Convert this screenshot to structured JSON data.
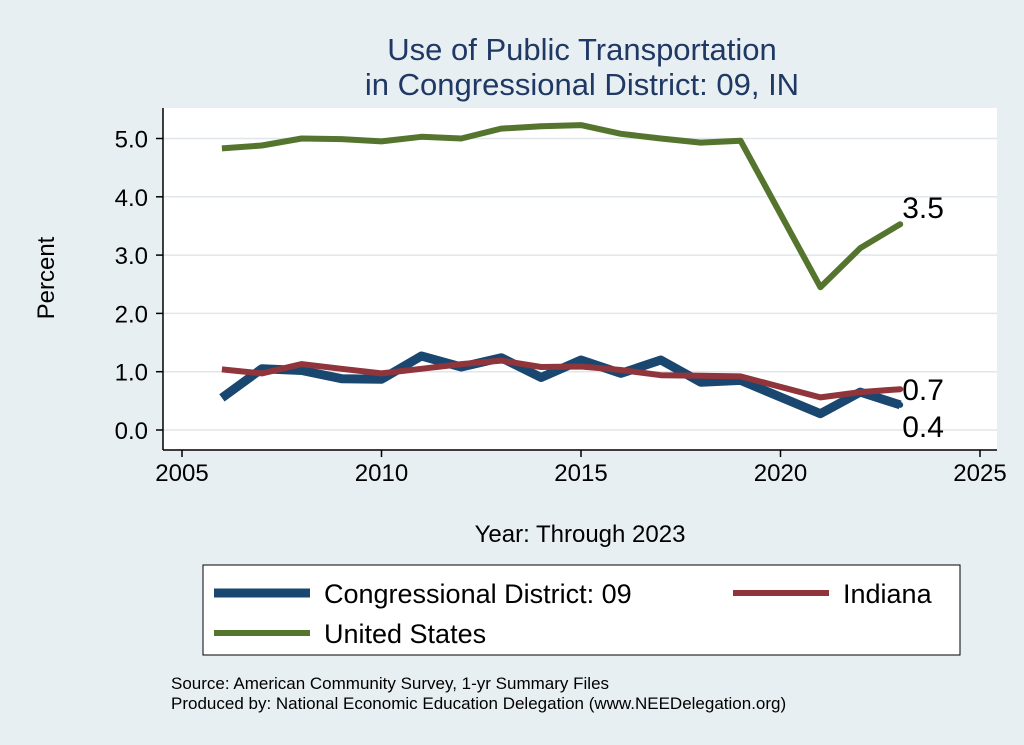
{
  "chart_data": {
    "type": "line",
    "title": [
      "Use of Public Transportation",
      "in Congressional District: 09, IN"
    ],
    "xlabel": "Year: Through 2023",
    "ylabel": "Percent",
    "xlim": [
      2005,
      2025
    ],
    "ylim": [
      0,
      5.4
    ],
    "xticks": [
      2005,
      2010,
      2015,
      2020,
      2025
    ],
    "yticks": [
      0,
      1,
      2,
      3,
      4,
      5
    ],
    "ytick_labels": [
      "0.0",
      "1.0",
      "2.0",
      "3.0",
      "4.0",
      "5.0"
    ],
    "grid": true,
    "legend_placement": "bottom",
    "x": [
      2006,
      2007,
      2008,
      2009,
      2010,
      2011,
      2012,
      2013,
      2014,
      2015,
      2016,
      2017,
      2018,
      2019,
      2021,
      2022,
      2023
    ],
    "series": [
      {
        "name": "Congressional District: 09",
        "color": "#1a476f",
        "values": [
          0.55,
          1.05,
          1.02,
          0.88,
          0.87,
          1.27,
          1.08,
          1.24,
          0.9,
          1.2,
          0.97,
          1.2,
          0.82,
          0.85,
          0.28,
          0.65,
          0.43
        ],
        "end_label": "0.4"
      },
      {
        "name": "Indiana",
        "color": "#90353b",
        "values": [
          1.04,
          0.97,
          1.13,
          1.05,
          0.97,
          1.05,
          1.13,
          1.19,
          1.08,
          1.09,
          1.03,
          0.94,
          0.93,
          0.92,
          0.56,
          0.65,
          0.7
        ],
        "end_label": "0.7"
      },
      {
        "name": "United States",
        "color": "#55752f",
        "values": [
          4.83,
          4.88,
          5.0,
          4.99,
          4.95,
          5.03,
          5.0,
          5.17,
          5.21,
          5.23,
          5.08,
          5.0,
          4.93,
          4.96,
          2.45,
          3.12,
          3.53
        ],
        "end_label": "3.5"
      }
    ],
    "source_lines": [
      "Source: American Community Survey, 1-yr Summary Files",
      "Produced by: National Economic Education Delegation (www.NEEDelegation.org)"
    ]
  }
}
